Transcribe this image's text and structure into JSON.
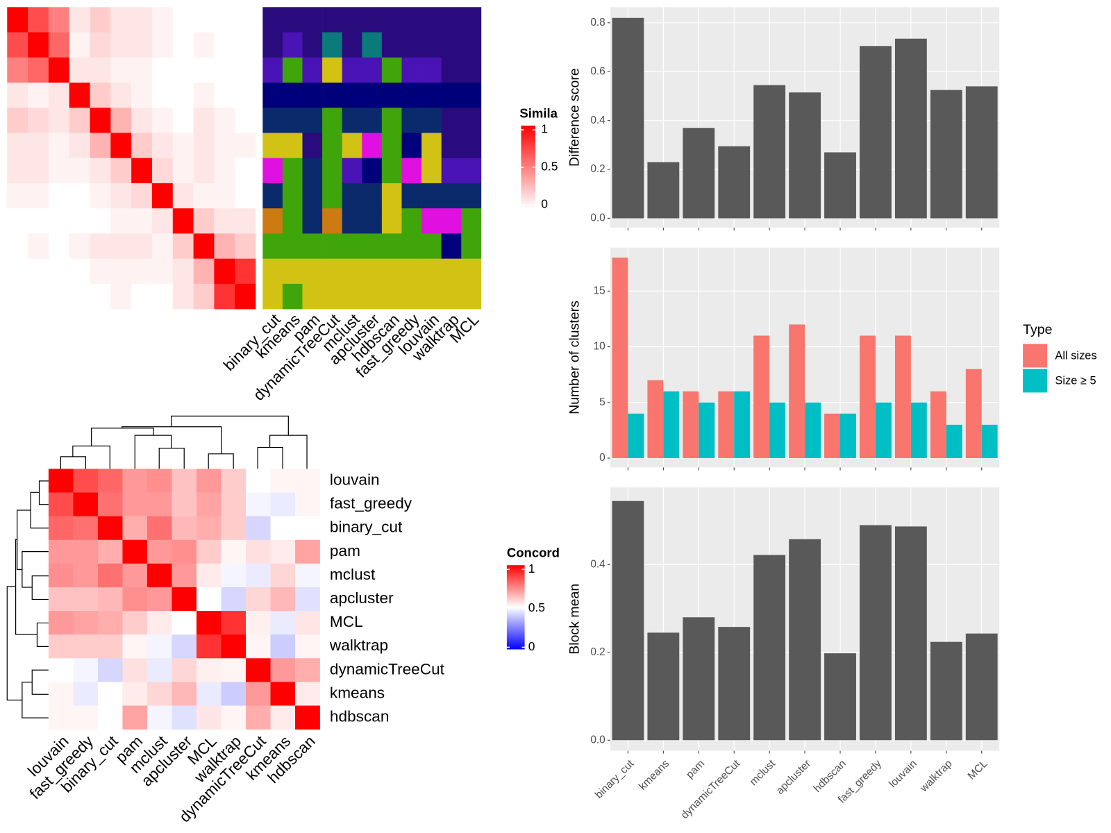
{
  "chart_data": [
    {
      "type": "heatmap",
      "values": [
        [
          1,
          0.7,
          0.5,
          0.1,
          0.2,
          0.1,
          0.1,
          0.05,
          0,
          0,
          0,
          0
        ],
        [
          0.7,
          1,
          0.6,
          0.05,
          0.15,
          0.1,
          0.1,
          0.05,
          0,
          0.05,
          0,
          0
        ],
        [
          0.5,
          0.6,
          1,
          0.1,
          0.1,
          0.05,
          0.05,
          0,
          0,
          0,
          0,
          0
        ],
        [
          0.1,
          0.05,
          0.1,
          1,
          0.2,
          0.1,
          0.05,
          0,
          0,
          0.05,
          0,
          0
        ],
        [
          0.2,
          0.15,
          0.1,
          0.2,
          1,
          0.3,
          0.1,
          0.05,
          0,
          0.1,
          0.05,
          0
        ],
        [
          0.1,
          0.1,
          0.05,
          0.1,
          0.3,
          1,
          0.2,
          0.1,
          0.05,
          0.1,
          0.05,
          0.05
        ],
        [
          0.1,
          0.1,
          0.05,
          0.05,
          0.1,
          0.2,
          1,
          0.15,
          0.05,
          0.1,
          0.05,
          0
        ],
        [
          0.05,
          0.05,
          0,
          0,
          0.05,
          0.1,
          0.15,
          1,
          0.1,
          0.05,
          0.05,
          0
        ],
        [
          0,
          0,
          0,
          0,
          0,
          0.05,
          0.05,
          0.1,
          1,
          0.2,
          0.1,
          0.1
        ],
        [
          0,
          0.05,
          0,
          0.05,
          0.1,
          0.1,
          0.1,
          0.05,
          0.2,
          1,
          0.3,
          0.2
        ],
        [
          0,
          0,
          0,
          0,
          0.05,
          0.05,
          0.05,
          0.05,
          0.1,
          0.3,
          1,
          0.8
        ],
        [
          0,
          0,
          0,
          0,
          0,
          0.05,
          0,
          0,
          0.1,
          0.2,
          0.8,
          1
        ]
      ],
      "zlim": [
        0,
        1
      ],
      "colors": [
        "#ffffff",
        "#ff0000"
      ],
      "legend_title": "Simila",
      "legend_ticks": [
        0,
        0.5,
        1
      ]
    },
    {
      "type": "tile",
      "categories": [
        "binary_cut",
        "kmeans",
        "pam",
        "dynamicTreeCut",
        "mclust",
        "apcluster",
        "hdbscan",
        "fast_greedy",
        "louvain",
        "walktrap",
        "MCL"
      ],
      "values": [
        [
          1,
          1,
          1,
          1,
          1,
          1,
          1,
          1,
          1,
          1,
          1
        ],
        [
          1,
          2,
          1,
          9,
          1,
          9,
          1,
          1,
          1,
          1,
          1
        ],
        [
          2,
          6,
          2,
          5,
          2,
          2,
          6,
          2,
          2,
          1,
          1
        ],
        [
          3,
          3,
          3,
          3,
          3,
          3,
          3,
          3,
          3,
          3,
          3
        ],
        [
          4,
          4,
          4,
          6,
          4,
          4,
          6,
          4,
          4,
          1,
          1
        ],
        [
          5,
          5,
          1,
          6,
          5,
          8,
          6,
          3,
          5,
          1,
          1
        ],
        [
          8,
          6,
          4,
          6,
          2,
          3,
          6,
          8,
          5,
          2,
          2
        ],
        [
          4,
          6,
          4,
          6,
          4,
          4,
          5,
          4,
          4,
          4,
          4
        ],
        [
          7,
          6,
          4,
          7,
          4,
          4,
          5,
          6,
          8,
          8,
          6
        ],
        [
          6,
          6,
          6,
          6,
          6,
          6,
          6,
          6,
          6,
          3,
          6
        ],
        [
          5,
          5,
          5,
          5,
          5,
          5,
          5,
          5,
          5,
          5,
          5
        ],
        [
          5,
          6,
          5,
          5,
          5,
          5,
          5,
          5,
          5,
          5,
          5
        ]
      ],
      "palette": [
        "#2a0b7d",
        "#4a13b5",
        "#00007a",
        "#0b2a6b",
        "#d2c214",
        "#3fa50a",
        "#cc7a12",
        "#e010e0",
        "#0a7a7a"
      ]
    },
    {
      "type": "heatmap",
      "categories": [
        "louvain",
        "fast_greedy",
        "binary_cut",
        "pam",
        "mclust",
        "apcluster",
        "MCL",
        "walktrap",
        "dynamicTreeCut",
        "kmeans",
        "hdbscan"
      ],
      "values": [
        [
          1,
          0.85,
          0.8,
          0.7,
          0.72,
          0.62,
          0.7,
          0.6,
          0.5,
          0.52,
          0.52
        ],
        [
          0.85,
          1,
          0.78,
          0.7,
          0.7,
          0.62,
          0.68,
          0.6,
          0.48,
          0.46,
          0.52
        ],
        [
          0.8,
          0.78,
          1,
          0.66,
          0.78,
          0.64,
          0.66,
          0.6,
          0.42,
          0.5,
          0.5
        ],
        [
          0.7,
          0.7,
          0.66,
          1,
          0.7,
          0.72,
          0.6,
          0.52,
          0.56,
          0.54,
          0.68
        ],
        [
          0.72,
          0.7,
          0.78,
          0.7,
          1,
          0.7,
          0.54,
          0.48,
          0.46,
          0.58,
          0.48
        ],
        [
          0.62,
          0.62,
          0.64,
          0.72,
          0.7,
          1,
          0.5,
          0.42,
          0.58,
          0.64,
          0.44
        ],
        [
          0.7,
          0.68,
          0.66,
          0.6,
          0.54,
          0.5,
          1,
          0.9,
          0.53,
          0.46,
          0.55
        ],
        [
          0.6,
          0.6,
          0.6,
          0.52,
          0.48,
          0.42,
          0.9,
          1,
          0.52,
          0.4,
          0.52
        ],
        [
          0.5,
          0.48,
          0.42,
          0.56,
          0.46,
          0.58,
          0.53,
          0.52,
          1,
          0.7,
          0.66
        ],
        [
          0.52,
          0.46,
          0.5,
          0.54,
          0.58,
          0.64,
          0.46,
          0.4,
          0.7,
          1,
          0.54
        ],
        [
          0.52,
          0.52,
          0.5,
          0.68,
          0.48,
          0.44,
          0.55,
          0.52,
          0.66,
          0.54,
          1
        ]
      ],
      "zlim": [
        0,
        1
      ],
      "colors": [
        "#0000ff",
        "#ffffff",
        "#ff0000"
      ],
      "legend_title": "Concord",
      "legend_ticks": [
        0,
        0.5,
        1
      ]
    },
    {
      "type": "bar",
      "ylabel": "Difference score",
      "values": [
        0.82,
        0.23,
        0.37,
        0.295,
        0.545,
        0.515,
        0.27,
        0.705,
        0.735,
        0.525,
        0.54
      ],
      "color": "#595959",
      "ylim": [
        -0.038,
        0.864
      ],
      "yticks": [
        {
          "value": 0,
          "label": "0.0"
        },
        0.2,
        0.4,
        0.6,
        0.8
      ],
      "grid": true
    },
    {
      "type": "grouped_bar",
      "ylabel": "Number of clusters",
      "legend_title": "Type",
      "series": [
        {
          "name": "All sizes",
          "color": "#F8766D",
          "values": [
            18,
            7,
            6,
            6,
            11,
            12,
            4,
            11,
            11,
            6,
            8
          ]
        },
        {
          "name": "Size ≥ 5",
          "color": "#00BFC4",
          "values": [
            4,
            6,
            5,
            6,
            5,
            5,
            4,
            5,
            5,
            3,
            3
          ]
        }
      ],
      "ylim": [
        -0.83,
        18.9
      ],
      "yticks": [
        0,
        5,
        10,
        15
      ],
      "grid": true
    },
    {
      "type": "bar",
      "ylabel": "Block mean",
      "categories": [
        "binary_cut",
        "kmeans",
        "pam",
        "dynamicTreeCut",
        "mclust",
        "apcluster",
        "hdbscan",
        "fast_greedy",
        "louvain",
        "walktrap",
        "MCL"
      ],
      "values": [
        0.545,
        0.245,
        0.28,
        0.258,
        0.422,
        0.458,
        0.198,
        0.49,
        0.487,
        0.224,
        0.243
      ],
      "color": "#595959",
      "ylim": [
        -0.024,
        0.576
      ],
      "yticks": [
        {
          "value": 0,
          "label": "0.0"
        },
        0.2,
        0.4
      ],
      "grid": true
    }
  ]
}
